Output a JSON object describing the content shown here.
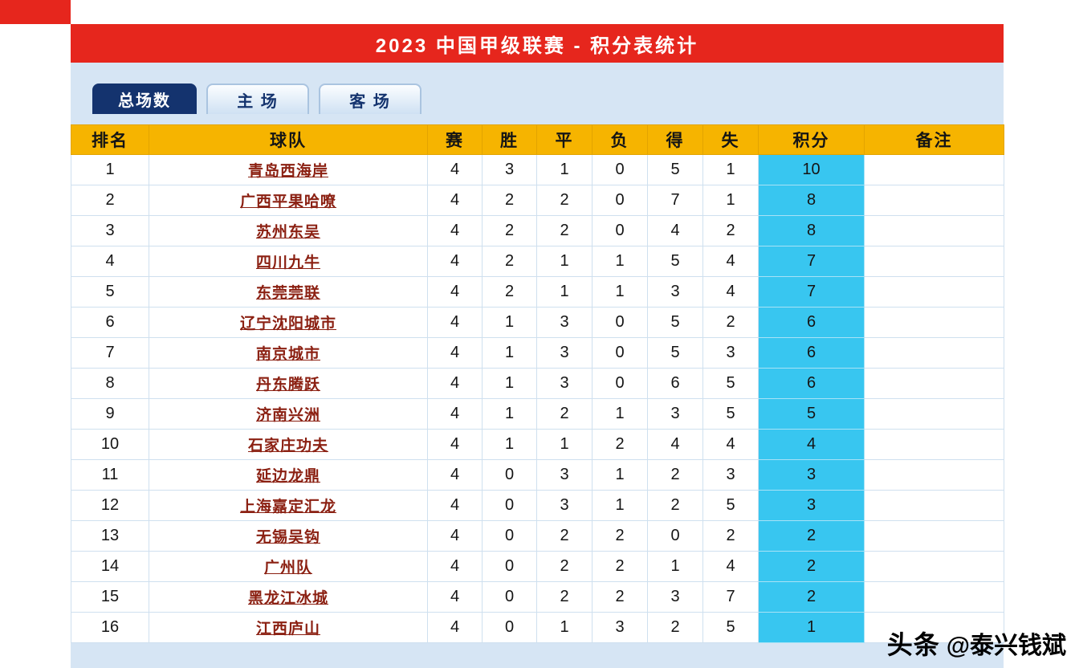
{
  "title": "2023 中国甲级联赛 - 积分表统计",
  "tabs": [
    {
      "id": "total",
      "label": "总场数",
      "active": true
    },
    {
      "id": "home",
      "label": "主 场",
      "active": false
    },
    {
      "id": "away",
      "label": "客 场",
      "active": false
    }
  ],
  "table": {
    "headers": [
      "排名",
      "球队",
      "赛",
      "胜",
      "平",
      "负",
      "得",
      "失",
      "积分",
      "备注"
    ],
    "rows": [
      {
        "rank": "1",
        "team": "青岛西海岸",
        "played": "4",
        "win": "3",
        "draw": "1",
        "loss": "0",
        "gf": "5",
        "ga": "1",
        "points": "10",
        "note": ""
      },
      {
        "rank": "2",
        "team": "广西平果哈嘹",
        "played": "4",
        "win": "2",
        "draw": "2",
        "loss": "0",
        "gf": "7",
        "ga": "1",
        "points": "8",
        "note": ""
      },
      {
        "rank": "3",
        "team": "苏州东吴",
        "played": "4",
        "win": "2",
        "draw": "2",
        "loss": "0",
        "gf": "4",
        "ga": "2",
        "points": "8",
        "note": ""
      },
      {
        "rank": "4",
        "team": "四川九牛",
        "played": "4",
        "win": "2",
        "draw": "1",
        "loss": "1",
        "gf": "5",
        "ga": "4",
        "points": "7",
        "note": ""
      },
      {
        "rank": "5",
        "team": "东莞莞联",
        "played": "4",
        "win": "2",
        "draw": "1",
        "loss": "1",
        "gf": "3",
        "ga": "4",
        "points": "7",
        "note": ""
      },
      {
        "rank": "6",
        "team": "辽宁沈阳城市",
        "played": "4",
        "win": "1",
        "draw": "3",
        "loss": "0",
        "gf": "5",
        "ga": "2",
        "points": "6",
        "note": ""
      },
      {
        "rank": "7",
        "team": "南京城市",
        "played": "4",
        "win": "1",
        "draw": "3",
        "loss": "0",
        "gf": "5",
        "ga": "3",
        "points": "6",
        "note": ""
      },
      {
        "rank": "8",
        "team": "丹东腾跃",
        "played": "4",
        "win": "1",
        "draw": "3",
        "loss": "0",
        "gf": "6",
        "ga": "5",
        "points": "6",
        "note": ""
      },
      {
        "rank": "9",
        "team": "济南兴洲",
        "played": "4",
        "win": "1",
        "draw": "2",
        "loss": "1",
        "gf": "3",
        "ga": "5",
        "points": "5",
        "note": ""
      },
      {
        "rank": "10",
        "team": "石家庄功夫",
        "played": "4",
        "win": "1",
        "draw": "1",
        "loss": "2",
        "gf": "4",
        "ga": "4",
        "points": "4",
        "note": ""
      },
      {
        "rank": "11",
        "team": "延边龙鼎",
        "played": "4",
        "win": "0",
        "draw": "3",
        "loss": "1",
        "gf": "2",
        "ga": "3",
        "points": "3",
        "note": ""
      },
      {
        "rank": "12",
        "team": "上海嘉定汇龙",
        "played": "4",
        "win": "0",
        "draw": "3",
        "loss": "1",
        "gf": "2",
        "ga": "5",
        "points": "3",
        "note": ""
      },
      {
        "rank": "13",
        "team": "无锡吴钩",
        "played": "4",
        "win": "0",
        "draw": "2",
        "loss": "2",
        "gf": "0",
        "ga": "2",
        "points": "2",
        "note": ""
      },
      {
        "rank": "14",
        "team": "广州队",
        "played": "4",
        "win": "0",
        "draw": "2",
        "loss": "2",
        "gf": "1",
        "ga": "4",
        "points": "2",
        "note": ""
      },
      {
        "rank": "15",
        "team": "黑龙江冰城",
        "played": "4",
        "win": "0",
        "draw": "2",
        "loss": "2",
        "gf": "3",
        "ga": "7",
        "points": "2",
        "note": ""
      },
      {
        "rank": "16",
        "team": "江西庐山",
        "played": "4",
        "win": "0",
        "draw": "1",
        "loss": "3",
        "gf": "2",
        "ga": "5",
        "points": "1",
        "note": ""
      }
    ]
  },
  "watermark": {
    "brand": "头条",
    "handle": "@泰兴钱斌"
  },
  "colors": {
    "header_red": "#e6261d",
    "tab_active_navy": "#14336e",
    "table_header_gold": "#f6b400",
    "points_cyan": "#38c6f0",
    "panel_blue": "#d6e5f4",
    "team_link_red": "#8b2012"
  }
}
